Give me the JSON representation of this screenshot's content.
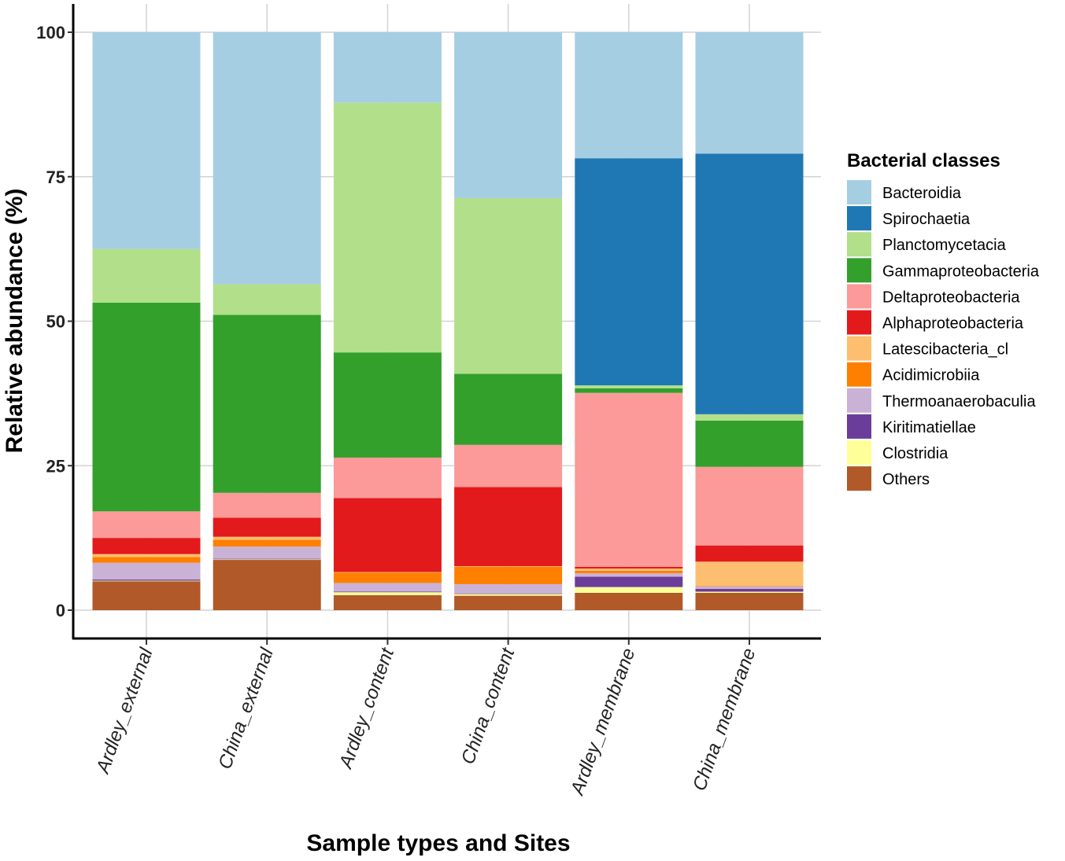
{
  "chart_data": {
    "type": "bar",
    "stacked": true,
    "title": "",
    "xlabel": "Sample types and Sites",
    "ylabel": "Relative abundance (%)",
    "ylim": [
      -5,
      105
    ],
    "yticks": [
      0,
      25,
      50,
      75,
      100
    ],
    "grid": true,
    "legend_title": "Bacterial classes",
    "legend_position": "right",
    "categories": [
      "Ardley_external",
      "China_external",
      "Ardley_content",
      "China_content",
      "Ardley_membrane",
      "China_membrane"
    ],
    "series": [
      {
        "name": "Others",
        "color": "#B15928",
        "values": [
          5.0,
          8.7,
          2.6,
          2.5,
          3.0,
          3.0
        ]
      },
      {
        "name": "Clostridia",
        "color": "#FFFF99",
        "values": [
          0.1,
          0.1,
          0.5,
          0.3,
          1.0,
          0.2
        ]
      },
      {
        "name": "Kiritimatiellae",
        "color": "#6A3D9A",
        "values": [
          0.2,
          0.1,
          0.1,
          0.1,
          1.8,
          0.5
        ]
      },
      {
        "name": "Thermoanaerobaculia",
        "color": "#CAB2D6",
        "values": [
          2.9,
          2.1,
          1.5,
          1.6,
          0.6,
          0.4
        ]
      },
      {
        "name": "Acidimicrobiia",
        "color": "#FF7F00",
        "values": [
          1.0,
          1.2,
          1.8,
          3.0,
          0.4,
          0.1
        ]
      },
      {
        "name": "Latescibacteria_cl",
        "color": "#FDBF6F",
        "values": [
          0.5,
          0.5,
          0.1,
          0.1,
          0.4,
          4.2
        ]
      },
      {
        "name": "Alphaproteobacteria",
        "color": "#E31A1C",
        "values": [
          2.8,
          3.3,
          12.8,
          13.7,
          0.3,
          2.8
        ]
      },
      {
        "name": "Deltaproteobacteria",
        "color": "#FB9A99",
        "values": [
          4.6,
          4.3,
          7.0,
          7.3,
          30.1,
          13.6
        ]
      },
      {
        "name": "Gammaproteobacteria",
        "color": "#33A02C",
        "values": [
          36.1,
          30.8,
          18.2,
          12.3,
          0.8,
          8.0
        ]
      },
      {
        "name": "Planctomycetacia",
        "color": "#B2DF8A",
        "values": [
          9.3,
          5.3,
          43.2,
          30.4,
          0.5,
          1.1
        ]
      },
      {
        "name": "Spirochaetia",
        "color": "#1F78B4",
        "values": [
          0,
          0,
          0,
          0,
          39.3,
          45.1
        ]
      },
      {
        "name": "Bacteroidia",
        "color": "#A6CEE3",
        "values": [
          37.5,
          43.6,
          12.2,
          28.7,
          21.8,
          21.0
        ]
      }
    ],
    "legend_order": [
      "Bacteroidia",
      "Spirochaetia",
      "Planctomycetacia",
      "Gammaproteobacteria",
      "Deltaproteobacteria",
      "Alphaproteobacteria",
      "Latescibacteria_cl",
      "Acidimicrobiia",
      "Thermoanaerobaculia",
      "Kiritimatiellae",
      "Clostridia",
      "Others"
    ]
  }
}
